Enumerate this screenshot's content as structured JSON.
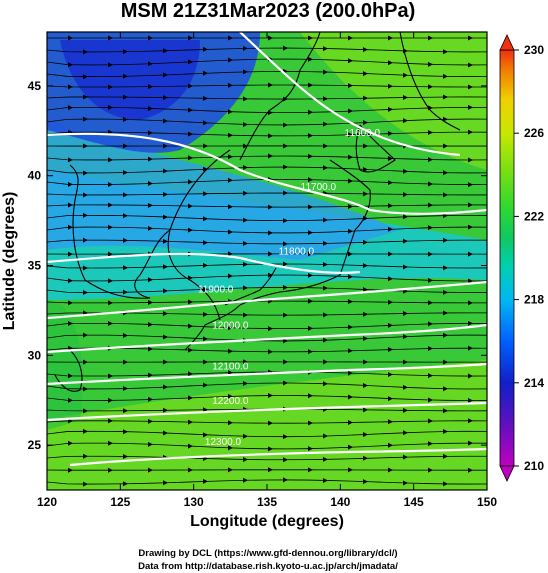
{
  "title": "MSM 21Z31Mar2023 (200.0hPa)",
  "xlabel": "Longitude (degrees)",
  "ylabel": "Latitude  (degrees)",
  "credits": [
    "Drawing by DCL (https://www.gfd-dennou.org/library/dcl/)",
    "Data from http://database.rish.kyoto-u.ac.jp/arch/jmadata/"
  ],
  "colorbar": {
    "min": 210,
    "max": 230,
    "tick_labels": [
      "230",
      "226",
      "222",
      "218",
      "214",
      "210"
    ],
    "colors": [
      "#c000c0",
      "#6010c0",
      "#1020c8",
      "#0060ff",
      "#00b8f0",
      "#00d0b0",
      "#10c860",
      "#30d830",
      "#80e010",
      "#c8e800",
      "#f0d000",
      "#f08000",
      "#f03010"
    ]
  },
  "chart_data": {
    "type": "heatmap",
    "field": "temperature (K) with geopotential height contours and wind vectors",
    "xlim": [
      120,
      150
    ],
    "ylim": [
      22.5,
      48
    ],
    "x_ticks": [
      "120",
      "125",
      "130",
      "135",
      "140",
      "145",
      "150"
    ],
    "y_ticks": [
      "25",
      "30",
      "35",
      "40",
      "45"
    ],
    "contour_labels": [
      {
        "label": "11600.0",
        "lon": 141.5,
        "lat": 42.2
      },
      {
        "label": "11700.0",
        "lon": 138.5,
        "lat": 39.2
      },
      {
        "label": "11800.0",
        "lon": 137.0,
        "lat": 35.6
      },
      {
        "label": "11900.0",
        "lon": 131.5,
        "lat": 33.5
      },
      {
        "label": "12000.0",
        "lon": 132.5,
        "lat": 31.5
      },
      {
        "label": "12100.0",
        "lon": 132.5,
        "lat": 29.2
      },
      {
        "label": "12200.0",
        "lon": 132.5,
        "lat": 27.3
      },
      {
        "label": "12300.0",
        "lon": 132.0,
        "lat": 25.0
      }
    ]
  }
}
